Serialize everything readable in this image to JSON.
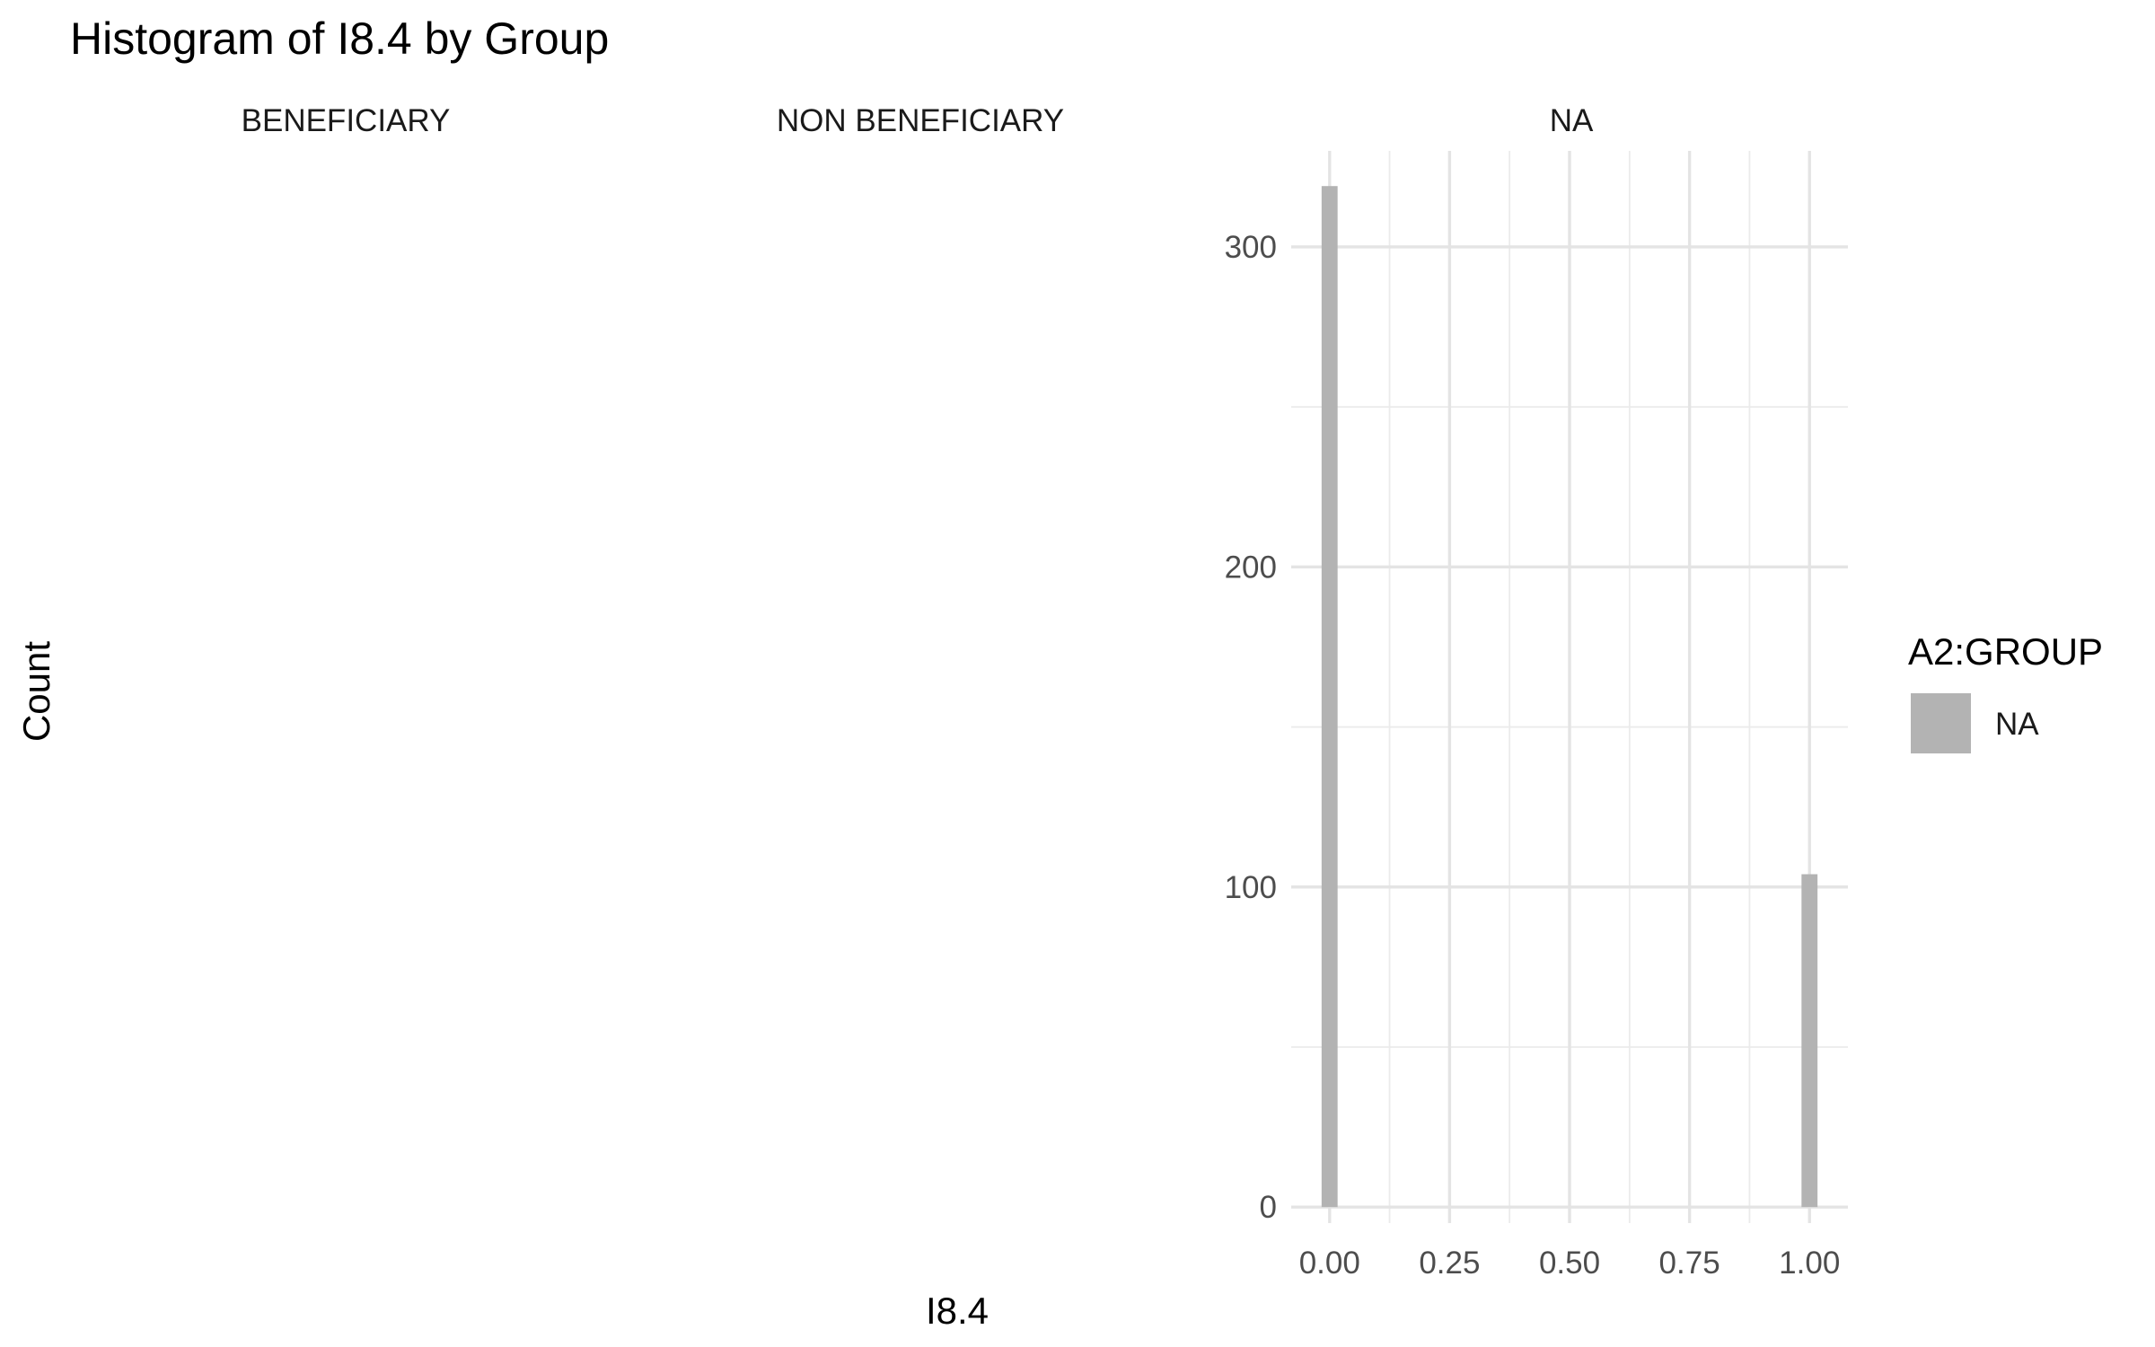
{
  "chart_data": {
    "type": "bar",
    "title": "Histogram of I8.4 by Group",
    "xlabel": "I8.4",
    "ylabel": "Count",
    "facets": [
      "BENEFICIARY",
      "NON BENEFICIARY",
      "NA"
    ],
    "xlim": [
      -0.08,
      1.08
    ],
    "ylim": [
      -5,
      330
    ],
    "x_ticks": [
      0,
      0.25,
      0.5,
      0.75,
      1
    ],
    "x_tick_labels": [
      "0.00",
      "0.25",
      "0.50",
      "0.75",
      "1.00"
    ],
    "y_ticks": [
      0,
      100,
      200,
      300
    ],
    "y_tick_labels": [
      "0",
      "100",
      "200",
      "300"
    ],
    "grid": true,
    "legend": {
      "title": "A2:GROUP",
      "position": "right",
      "entries": [
        {
          "label": "NA",
          "color": "#b3b3b3"
        }
      ]
    },
    "series": [
      {
        "facet": "NA",
        "color": "#b3b3b3",
        "bins": [
          {
            "x": 0,
            "count": 319
          },
          {
            "x": 1,
            "count": 104
          }
        ]
      }
    ]
  }
}
